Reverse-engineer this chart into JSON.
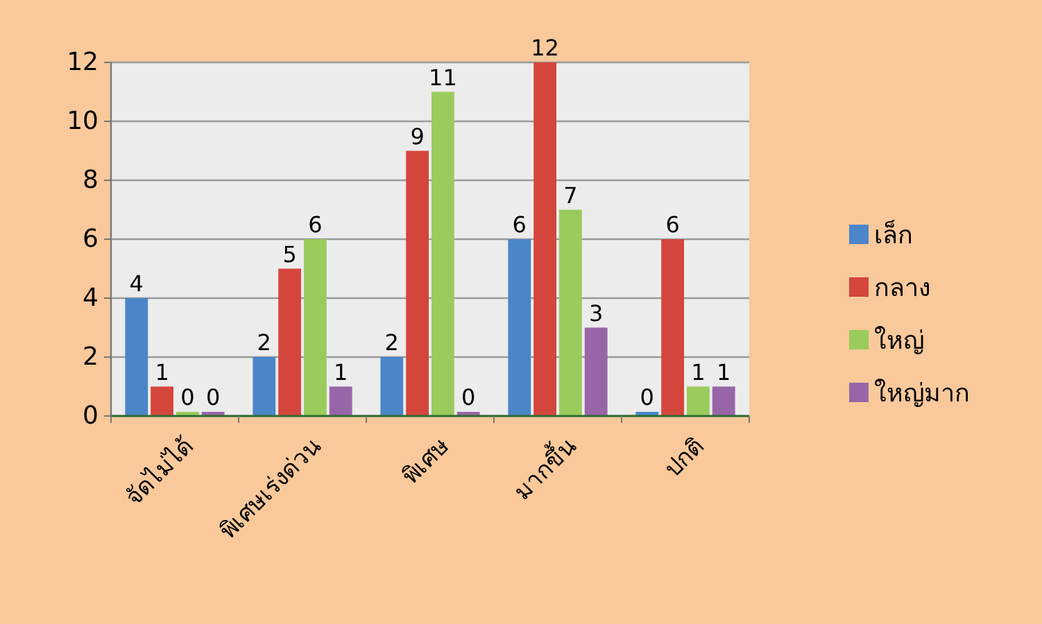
{
  "chart_data": {
    "type": "bar",
    "categories": [
      "จัดไม่ได้",
      "พิเศษเร่งด่วน",
      "พิเศษ",
      "มากขึ้น",
      "ปกติ"
    ],
    "series": [
      {
        "name": "เล็ก",
        "color": "#4a86c8",
        "values": [
          4,
          2,
          2,
          6,
          0
        ]
      },
      {
        "name": "กลาง",
        "color": "#d4463c",
        "values": [
          1,
          5,
          9,
          12,
          6
        ]
      },
      {
        "name": "ใหญ่",
        "color": "#9bcb5c",
        "values": [
          0,
          6,
          11,
          7,
          1
        ]
      },
      {
        "name": "ใหญ่มาก",
        "color": "#9866a8",
        "values": [
          0,
          1,
          0,
          3,
          1
        ]
      }
    ],
    "ylim": [
      0,
      12
    ],
    "yticks": [
      0,
      2,
      4,
      6,
      8,
      10,
      12
    ],
    "grid": "y",
    "legend": "right",
    "data_labels": true
  }
}
